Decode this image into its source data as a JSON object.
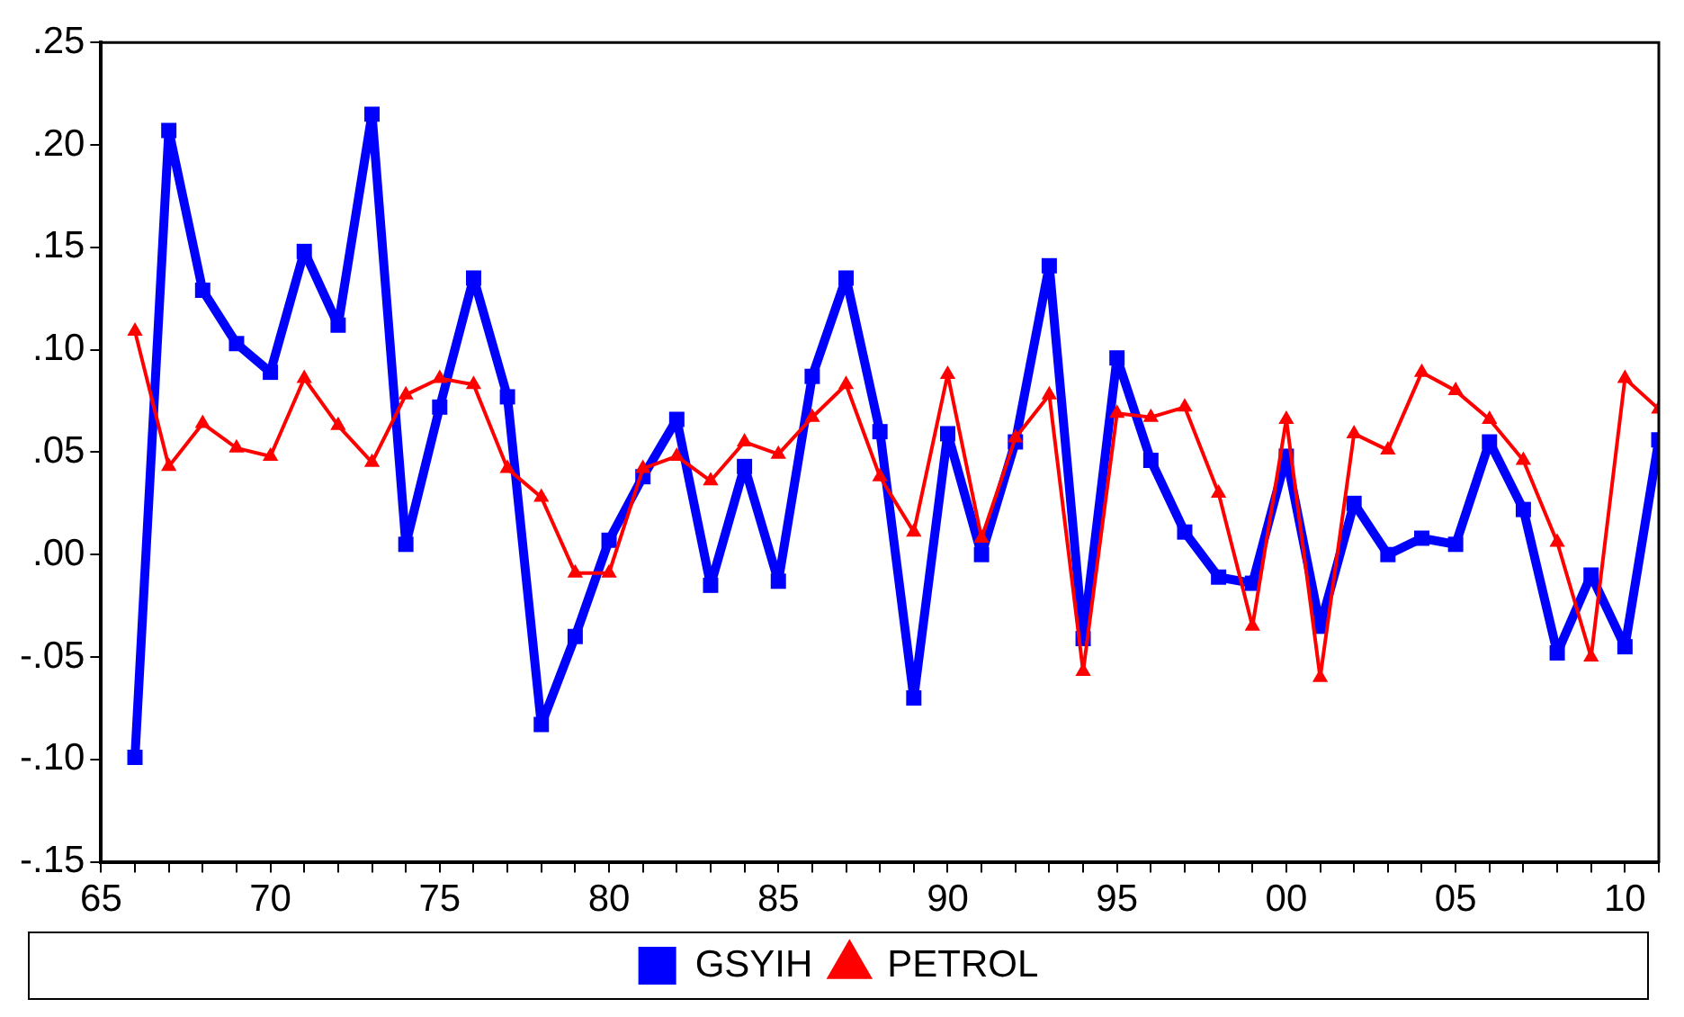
{
  "chart_data": {
    "type": "line",
    "x": [
      1966,
      1967,
      1968,
      1969,
      1970,
      1971,
      1972,
      1973,
      1974,
      1975,
      1976,
      1977,
      1978,
      1979,
      1980,
      1981,
      1982,
      1983,
      1984,
      1985,
      1986,
      1987,
      1988,
      1989,
      1990,
      1991,
      1992,
      1993,
      1994,
      1995,
      1996,
      1997,
      1998,
      1999,
      2000,
      2001,
      2002,
      2003,
      2004,
      2005,
      2006,
      2007,
      2008,
      2009,
      2010,
      2011
    ],
    "series": [
      {
        "name": "GSYIH",
        "color": "#0000ff",
        "marker": "square",
        "values": [
          -0.099,
          0.207,
          0.129,
          0.103,
          0.089,
          0.148,
          0.112,
          0.215,
          0.005,
          0.072,
          0.135,
          0.077,
          -0.083,
          -0.04,
          0.007,
          0.038,
          0.066,
          -0.015,
          0.043,
          -0.013,
          0.087,
          0.135,
          0.06,
          -0.07,
          0.059,
          0.0,
          0.055,
          0.141,
          -0.041,
          0.096,
          0.046,
          0.011,
          -0.011,
          -0.014,
          0.048,
          -0.035,
          0.025,
          0.0,
          0.008,
          0.005,
          0.055,
          0.022,
          -0.048,
          -0.01,
          -0.045,
          0.056
        ]
      },
      {
        "name": "PETROL",
        "color": "#ff0000",
        "marker": "triangle",
        "values": [
          0.109,
          0.043,
          0.064,
          0.052,
          0.048,
          0.086,
          0.063,
          0.045,
          0.078,
          0.086,
          0.083,
          0.042,
          0.028,
          -0.009,
          -0.009,
          0.042,
          0.048,
          0.036,
          0.055,
          0.049,
          0.067,
          0.083,
          0.038,
          0.011,
          0.088,
          0.008,
          0.057,
          0.078,
          -0.057,
          0.069,
          0.067,
          0.072,
          0.03,
          -0.035,
          0.066,
          -0.06,
          0.059,
          0.051,
          0.089,
          0.08,
          0.066,
          0.046,
          0.006,
          -0.05,
          0.086,
          0.071
        ]
      }
    ],
    "xlim": [
      1965,
      2011
    ],
    "xticks": [
      {
        "value": 1965,
        "label": "65"
      },
      {
        "value": 1966,
        "label": null
      },
      {
        "value": 1967,
        "label": null
      },
      {
        "value": 1968,
        "label": null
      },
      {
        "value": 1969,
        "label": null
      },
      {
        "value": 1970,
        "label": "70"
      },
      {
        "value": 1971,
        "label": null
      },
      {
        "value": 1972,
        "label": null
      },
      {
        "value": 1973,
        "label": null
      },
      {
        "value": 1974,
        "label": null
      },
      {
        "value": 1975,
        "label": "75"
      },
      {
        "value": 1976,
        "label": null
      },
      {
        "value": 1977,
        "label": null
      },
      {
        "value": 1978,
        "label": null
      },
      {
        "value": 1979,
        "label": null
      },
      {
        "value": 1980,
        "label": "80"
      },
      {
        "value": 1981,
        "label": null
      },
      {
        "value": 1982,
        "label": null
      },
      {
        "value": 1983,
        "label": null
      },
      {
        "value": 1984,
        "label": null
      },
      {
        "value": 1985,
        "label": "85"
      },
      {
        "value": 1986,
        "label": null
      },
      {
        "value": 1987,
        "label": null
      },
      {
        "value": 1988,
        "label": null
      },
      {
        "value": 1989,
        "label": null
      },
      {
        "value": 1990,
        "label": "90"
      },
      {
        "value": 1991,
        "label": null
      },
      {
        "value": 1992,
        "label": null
      },
      {
        "value": 1993,
        "label": null
      },
      {
        "value": 1994,
        "label": null
      },
      {
        "value": 1995,
        "label": "95"
      },
      {
        "value": 1996,
        "label": null
      },
      {
        "value": 1997,
        "label": null
      },
      {
        "value": 1998,
        "label": null
      },
      {
        "value": 1999,
        "label": null
      },
      {
        "value": 2000,
        "label": "00"
      },
      {
        "value": 2001,
        "label": null
      },
      {
        "value": 2002,
        "label": null
      },
      {
        "value": 2003,
        "label": null
      },
      {
        "value": 2004,
        "label": null
      },
      {
        "value": 2005,
        "label": "05"
      },
      {
        "value": 2006,
        "label": null
      },
      {
        "value": 2007,
        "label": null
      },
      {
        "value": 2008,
        "label": null
      },
      {
        "value": 2009,
        "label": null
      },
      {
        "value": 2010,
        "label": "10"
      },
      {
        "value": 2011,
        "label": null
      }
    ],
    "ylim": [
      -0.15,
      0.25
    ],
    "yticks": [
      {
        "value": -0.15,
        "label": "-.15"
      },
      {
        "value": -0.1,
        "label": "-.10"
      },
      {
        "value": -0.05,
        "label": "-.05"
      },
      {
        "value": 0,
        "label": ".00"
      },
      {
        "value": 0.05,
        "label": ".05"
      },
      {
        "value": 0.1,
        "label": ".10"
      },
      {
        "value": 0.15,
        "label": ".15"
      },
      {
        "value": 0.2,
        "label": ".20"
      },
      {
        "value": 0.25,
        "label": ".25"
      }
    ],
    "grid": false,
    "legend": "bottom",
    "line_style": "solid"
  }
}
